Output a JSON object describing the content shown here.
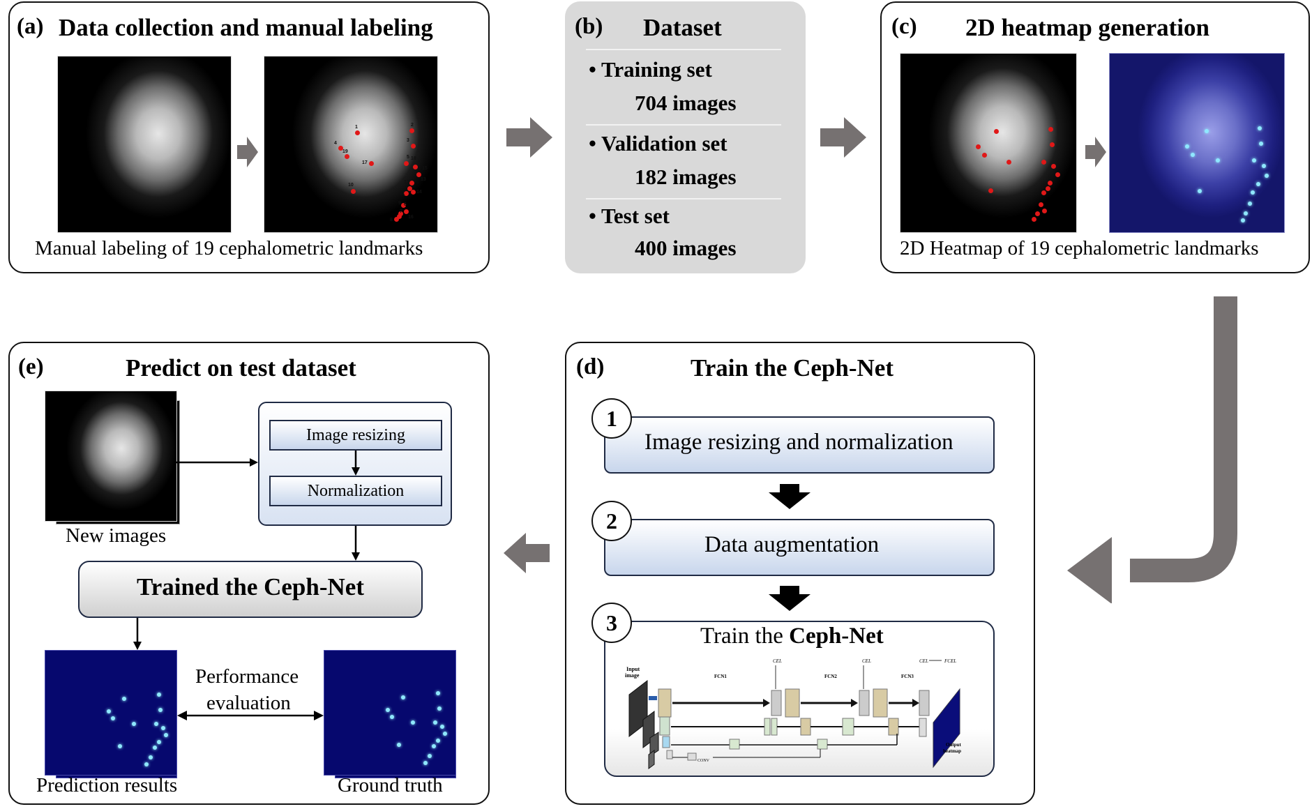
{
  "panel_a": {
    "label": "(a)",
    "title": "Data collection  and manual labeling",
    "caption": "Manual labeling of 19 cephalometric  landmarks",
    "landmark_numbers": [
      "1",
      "2",
      "3",
      "4",
      "19",
      "5",
      "17",
      "18",
      "15",
      "13",
      "12",
      "14",
      "10",
      "11",
      "6",
      "7",
      "8",
      "16",
      "9"
    ]
  },
  "panel_b": {
    "label": "(b)",
    "title": "Dataset",
    "items": [
      {
        "name": "• Training set",
        "count": "704 images"
      },
      {
        "name": "• Validation set",
        "count": "182 images"
      },
      {
        "name": "• Test set",
        "count": "400 images"
      }
    ]
  },
  "panel_c": {
    "label": "(c)",
    "title": "2D heatmap generation",
    "caption": "2D Heatmap  of 19 cephalometric  landmarks"
  },
  "panel_d": {
    "label": "(d)",
    "title": "Train the Ceph-Net",
    "steps": [
      {
        "num": "1",
        "text": "Image resizing and normalization"
      },
      {
        "num": "2",
        "text": "Data augmentation"
      },
      {
        "num": "3",
        "text_prefix": "Train the ",
        "text_bold": "Ceph-Net"
      }
    ],
    "network": {
      "input_label_1": "Input",
      "input_label_2": "image",
      "fcn1": "FCN1",
      "fcn2": "FCN2",
      "fcn3": "FCN3",
      "cel1": "CEL",
      "cel2": "CEL",
      "cel3": "CEL",
      "fcel": "FCEL",
      "output_1": "Output",
      "output_2": "heatmap",
      "conv": "CONV"
    }
  },
  "panel_e": {
    "label": "(e)",
    "title": "Predict on test dataset",
    "new_images": "New images",
    "resize": "Image resizing",
    "normalize": "Normalization",
    "trained": "Trained the Ceph-Net",
    "perf_1": "Performance",
    "perf_2": "evaluation",
    "pred": "Prediction results",
    "gt": "Ground truth"
  },
  "colors": {
    "arrow_gray": "#767171",
    "panel_gray": "#d9d9d9",
    "box_blue": "#c8d6ec",
    "heatmap_blue": "#06086e"
  }
}
